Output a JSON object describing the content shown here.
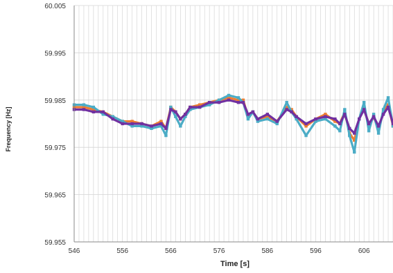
{
  "chart_data": {
    "type": "line",
    "title": "",
    "xlabel": "Time [s]",
    "ylabel": "Frequency [Hz]",
    "xlim": [
      546,
      612
    ],
    "ylim": [
      59.955,
      60.005
    ],
    "x_ticks": [
      546,
      556,
      566,
      576,
      586,
      596,
      606
    ],
    "x_tick_labels": [
      "546",
      "556",
      "566",
      "576",
      "586",
      "596",
      "606"
    ],
    "y_ticks": [
      59.955,
      59.965,
      59.975,
      59.985,
      59.995,
      60.005
    ],
    "y_tick_labels": [
      "59.955",
      "59.965",
      "59.975",
      "59.985",
      "59.995",
      "60.005"
    ],
    "grid": {
      "vertical": true,
      "horizontal": true
    },
    "legend": "none",
    "x": [
      546,
      548,
      550,
      552,
      554,
      556,
      558,
      560,
      562,
      564,
      565,
      566,
      567,
      568,
      569,
      570,
      572,
      574,
      576,
      578,
      580,
      581,
      582,
      583,
      584,
      586,
      588,
      590,
      591,
      592,
      594,
      596,
      598,
      600,
      601,
      602,
      603,
      604,
      605,
      606,
      607,
      608,
      609,
      610,
      611,
      612
    ],
    "series": [
      {
        "color": "#ed7d31",
        "values": [
          59.9835,
          59.9835,
          59.983,
          59.9825,
          59.9815,
          59.9805,
          59.9805,
          59.98,
          59.9795,
          59.9805,
          59.979,
          59.9835,
          59.9825,
          59.981,
          59.982,
          59.9835,
          59.984,
          59.9845,
          59.985,
          59.9855,
          59.985,
          59.985,
          59.9815,
          59.9825,
          59.981,
          59.9815,
          59.9805,
          59.9835,
          59.983,
          59.9815,
          59.9795,
          59.981,
          59.982,
          59.9805,
          59.98,
          59.9825,
          59.978,
          59.9765,
          59.981,
          59.9835,
          59.9795,
          59.9815,
          59.979,
          59.9825,
          59.984,
          59.9795
        ]
      },
      {
        "color": "#4bacc6",
        "values": [
          59.984,
          59.984,
          59.9835,
          59.982,
          59.9815,
          59.9805,
          59.9795,
          59.9795,
          59.979,
          59.9795,
          59.9775,
          59.9835,
          59.9815,
          59.9795,
          59.9815,
          59.983,
          59.9835,
          59.984,
          59.985,
          59.986,
          59.9855,
          59.9845,
          59.981,
          59.9825,
          59.9805,
          59.981,
          59.98,
          59.9845,
          59.9825,
          59.981,
          59.9775,
          59.9805,
          59.981,
          59.9795,
          59.9785,
          59.983,
          59.9775,
          59.974,
          59.981,
          59.9845,
          59.9785,
          59.982,
          59.978,
          59.983,
          59.9855,
          59.9795
        ]
      },
      {
        "color": "#7030a0",
        "values": [
          59.983,
          59.983,
          59.9825,
          59.9825,
          59.981,
          59.98,
          59.98,
          59.98,
          59.9795,
          59.98,
          59.979,
          59.983,
          59.9825,
          59.981,
          59.982,
          59.9835,
          59.9835,
          59.9845,
          59.9845,
          59.985,
          59.9845,
          59.9845,
          59.982,
          59.9825,
          59.981,
          59.982,
          59.9805,
          59.983,
          59.9825,
          59.9815,
          59.98,
          59.981,
          59.9815,
          59.981,
          59.98,
          59.982,
          59.979,
          59.978,
          59.981,
          59.983,
          59.98,
          59.9815,
          59.9795,
          59.982,
          59.9835,
          59.98
        ]
      }
    ]
  }
}
